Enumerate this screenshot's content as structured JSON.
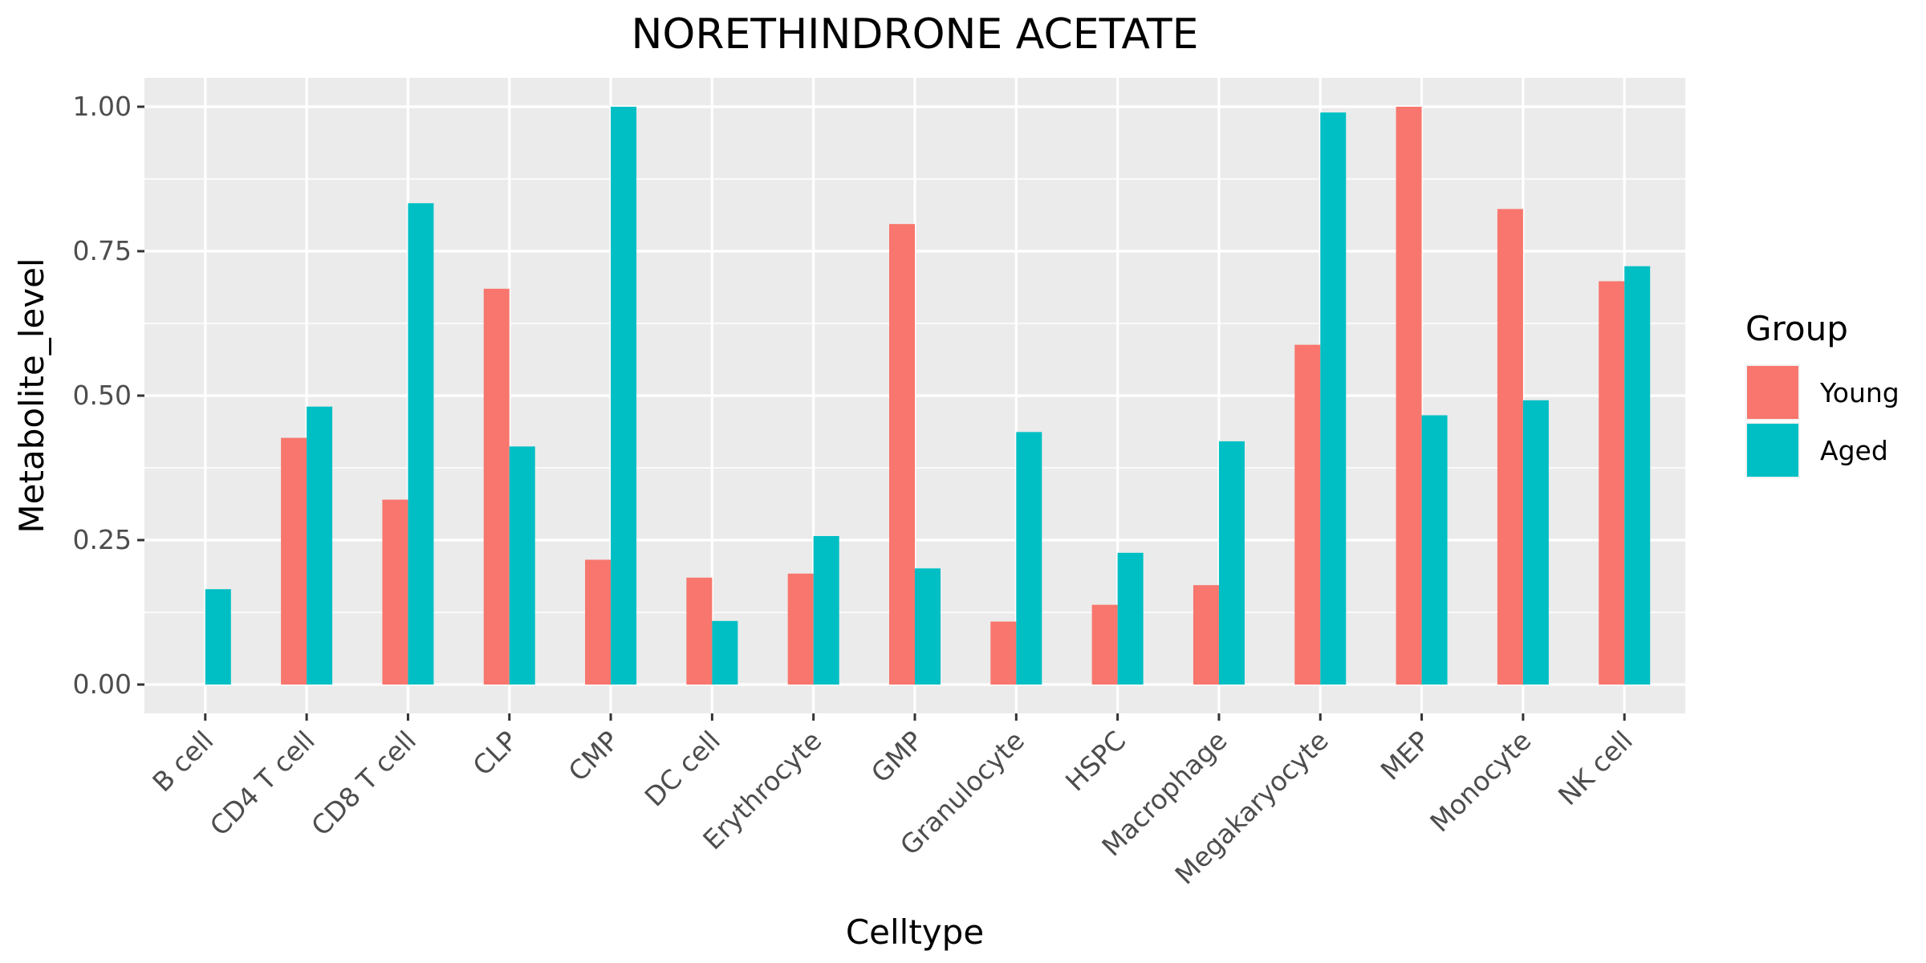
{
  "chart_data": {
    "type": "bar",
    "title": "NORETHINDRONE ACETATE",
    "xlabel": "Celltype",
    "ylabel": "Metabolite_level",
    "ylim": [
      -0.05,
      1.05
    ],
    "yticks": [
      0.0,
      0.25,
      0.5,
      0.75,
      1.0
    ],
    "ytick_labels": [
      "0.00",
      "0.25",
      "0.50",
      "0.75",
      "1.00"
    ],
    "grid": true,
    "legend": {
      "title": "Group",
      "position": "right"
    },
    "categories": [
      "B cell",
      "CD4 T cell",
      "CD8 T cell",
      "CLP",
      "CMP",
      "DC cell",
      "Erythrocyte",
      "GMP",
      "Granulocyte",
      "HSPC",
      "Macrophage",
      "Megakaryocyte",
      "MEP",
      "Monocyte",
      "NK cell"
    ],
    "series": [
      {
        "name": "Young",
        "color": "#F8766D",
        "values": [
          null,
          0.427,
          0.32,
          0.685,
          0.216,
          0.185,
          0.192,
          0.797,
          0.109,
          0.138,
          0.172,
          0.588,
          1.0,
          0.823,
          0.698
        ]
      },
      {
        "name": "Aged",
        "color": "#00BFC4",
        "values": [
          0.165,
          0.481,
          0.833,
          0.412,
          1.0,
          0.11,
          0.257,
          0.201,
          0.437,
          0.228,
          0.421,
          0.99,
          0.466,
          0.492,
          0.724
        ]
      }
    ]
  }
}
